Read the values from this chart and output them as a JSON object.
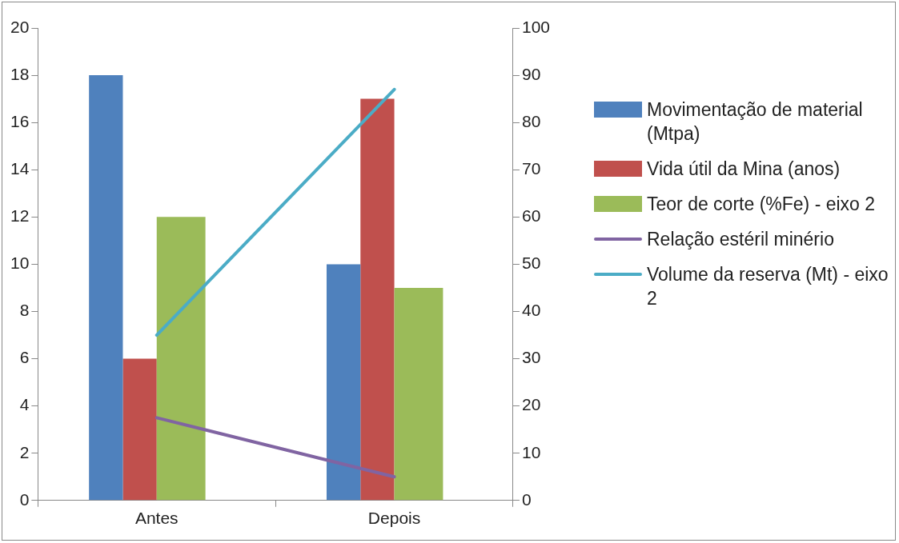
{
  "chart_data": {
    "type": "bar",
    "categories": [
      "Antes",
      "Depois"
    ],
    "series": [
      {
        "name": "Movimentação de material (Mtpa)",
        "color": "#4f81bd",
        "values": [
          18,
          10
        ]
      },
      {
        "name": "Vida útil da Mina (anos)",
        "color": "#c0504d",
        "values": [
          6,
          17
        ]
      },
      {
        "name": "Teor de corte (%Fe) - eixo 2",
        "color": "#9bbb59",
        "values": [
          60,
          45
        ],
        "axis": "y2"
      },
      {
        "name": "Relação estéril minério",
        "type": "line",
        "color": "#8064a2",
        "values": [
          3.5,
          1
        ]
      },
      {
        "name": "Volume da reserva (Mt) - eixo 2",
        "type": "line",
        "color": "#4bacc6",
        "values": [
          35,
          87
        ],
        "axis": "y2"
      }
    ],
    "ylim": [
      0,
      20
    ],
    "yticks": [
      0,
      2,
      4,
      6,
      8,
      10,
      12,
      14,
      16,
      18,
      20
    ],
    "y2lim": [
      0,
      100
    ],
    "y2ticks": [
      0,
      10,
      20,
      30,
      40,
      50,
      60,
      70,
      80,
      90,
      100
    ],
    "grid": false,
    "legend": "right",
    "marker": "none"
  }
}
